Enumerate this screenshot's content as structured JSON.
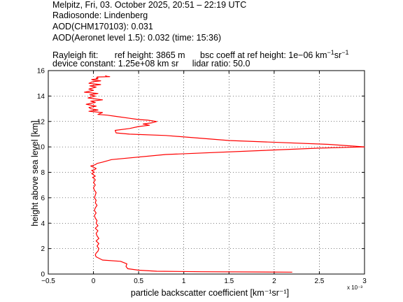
{
  "header": {
    "line1": "Melpitz, Fri, 03. October 2025, 20:51 – 22:19 UTC",
    "line2": "Radiosonde: Lindenberg",
    "line3": "AOD(CHM170103): 0.031",
    "line4": "AOD(Aeronet level 1.5): 0.032   (time: 15:36)",
    "rayleigh_label": "Rayleigh fit:",
    "ref_height": "ref height: 3865 m",
    "bsc_coeff_prefix": "bsc coeff at ref height: 1e−06 km",
    "device_constant": "device constant: 1.25e+08 km sr",
    "lidar_ratio": "lidar ratio: 50.0"
  },
  "colors": {
    "line": "#ff0000",
    "axes": "#000000",
    "grid": "#000000"
  },
  "chart_data": {
    "type": "line",
    "xlabel": "particle backscatter coefficient [km⁻¹sr⁻¹]",
    "ylabel": "height above sea level [km]",
    "x_exponent_label": "x 10⁻³",
    "xlim": [
      -0.0005,
      0.003
    ],
    "ylim": [
      0,
      16
    ],
    "xticks": [
      -0.0005,
      0,
      0.0005,
      0.001,
      0.0015,
      0.002,
      0.0025,
      0.003
    ],
    "xtick_labels": [
      "−0.5",
      "0",
      "0.5",
      "1",
      "1.5",
      "2",
      "2.5",
      "3"
    ],
    "yticks": [
      0,
      2,
      4,
      6,
      8,
      10,
      12,
      14,
      16
    ],
    "ytick_labels": [
      "0",
      "2",
      "4",
      "6",
      "8",
      "10",
      "12",
      "14",
      "16"
    ],
    "grid": true,
    "series": [
      {
        "x": [
          0.0022,
          0.0012,
          0.0007,
          0.0005,
          0.00038,
          0.00036,
          0.00037,
          0.0003,
          0.0001,
          3e-05,
          2e-05,
          3e-05,
          5e-05,
          6e-05,
          4e-05,
          6e-05,
          3e-05,
          6e-05,
          4e-05,
          3e-05,
          5e-05,
          2e-05,
          5e-05,
          3e-05,
          4e-05,
          2e-05,
          1e-05,
          3e-05,
          1e-05,
          2e-05,
          4e-05,
          2e-05,
          3e-05,
          1e-05,
          2e-05,
          3e-05,
          1e-05,
          0.0,
          2e-05,
          0.0,
          2e-05,
          1e-05,
          -1e-05,
          2e-05,
          0.0,
          -2e-05,
          1e-05,
          -1e-05,
          -2e-05,
          1e-05,
          3e-05,
          0.0,
          -3e-05,
          2e-05,
          4e-05,
          0.0001,
          0.0002,
          0.0008,
          0.0025,
          0.003,
          0.0026,
          0.0015,
          0.0008,
          0.0004,
          0.00025,
          0.00024,
          0.0004,
          0.0005,
          0.00062,
          0.00055,
          0.00065,
          0.0007,
          0.0006,
          0.0005,
          0.0004,
          0.00025,
          0.00015,
          5e-05,
          0.0001,
          -5e-05,
          5e-05,
          -3e-05,
          -5e-05,
          3e-05,
          -8e-05,
          2e-05,
          -3e-05,
          0.0001,
          -6e-05,
          2e-05,
          -4e-05,
          5e-05,
          -0.0001,
          0.0,
          -5e-05,
          3e-05,
          -4e-05,
          8e-05,
          -5e-05,
          -2e-05,
          2e-05,
          8e-05,
          0.0,
          -2e-05,
          5e-05,
          3e-05,
          5e-05,
          4e-05,
          0.00018,
          0.00015,
          0.00013
        ],
        "y": [
          0.15,
          0.18,
          0.22,
          0.3,
          0.42,
          0.6,
          0.8,
          1.0,
          1.1,
          1.35,
          1.5,
          1.65,
          1.8,
          2.0,
          2.2,
          2.4,
          2.6,
          2.8,
          3.0,
          3.2,
          3.4,
          3.6,
          3.8,
          4.0,
          4.2,
          4.4,
          4.6,
          4.8,
          5.0,
          5.2,
          5.4,
          5.6,
          5.8,
          6.0,
          6.2,
          6.4,
          6.6,
          6.8,
          7.0,
          7.2,
          7.4,
          7.5,
          7.6,
          7.7,
          7.8,
          7.9,
          8.0,
          8.1,
          8.15,
          8.2,
          8.3,
          8.4,
          8.5,
          8.6,
          8.7,
          8.8,
          9.0,
          9.4,
          9.9,
          10.0,
          10.2,
          10.5,
          10.9,
          11.0,
          11.1,
          11.3,
          11.45,
          11.6,
          11.7,
          11.8,
          11.9,
          12.0,
          12.1,
          12.15,
          12.25,
          12.4,
          12.5,
          12.55,
          12.7,
          12.8,
          12.9,
          13.0,
          13.1,
          13.2,
          13.35,
          13.5,
          13.6,
          13.7,
          13.85,
          14.0,
          14.1,
          14.2,
          14.3,
          14.45,
          14.55,
          14.7,
          14.8,
          14.9,
          15.0,
          15.1,
          15.15,
          15.2,
          15.25,
          15.3,
          15.35,
          15.4,
          15.45,
          15.5,
          15.52,
          15.55,
          15.6
        ]
      }
    ]
  }
}
